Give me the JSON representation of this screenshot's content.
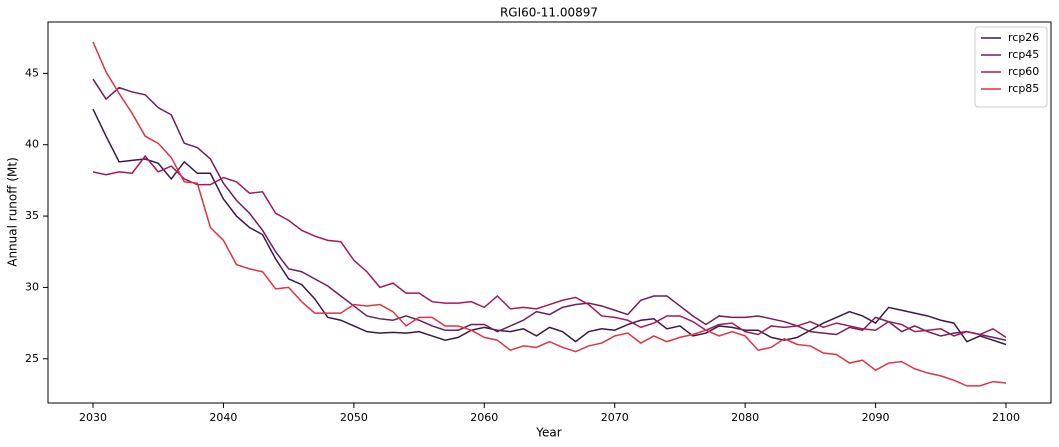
{
  "chart_data": {
    "type": "line",
    "title": "RGI60-11.00897",
    "xlabel": "Year",
    "ylabel": "Annual runoff (Mt)",
    "x": [
      2030,
      2031,
      2032,
      2033,
      2034,
      2035,
      2036,
      2037,
      2038,
      2039,
      2040,
      2041,
      2042,
      2043,
      2044,
      2045,
      2046,
      2047,
      2048,
      2049,
      2050,
      2051,
      2052,
      2053,
      2054,
      2055,
      2056,
      2057,
      2058,
      2059,
      2060,
      2061,
      2062,
      2063,
      2064,
      2065,
      2066,
      2067,
      2068,
      2069,
      2070,
      2071,
      2072,
      2073,
      2074,
      2075,
      2076,
      2077,
      2078,
      2079,
      2080,
      2081,
      2082,
      2083,
      2084,
      2085,
      2086,
      2087,
      2088,
      2089,
      2090,
      2091,
      2092,
      2093,
      2094,
      2095,
      2096,
      2097,
      2098,
      2099,
      2100
    ],
    "series": [
      {
        "name": "rcp26",
        "color": "#3d1a46",
        "values": [
          42.5,
          40.6,
          38.8,
          38.9,
          39.0,
          38.7,
          37.6,
          38.8,
          38.0,
          38.0,
          36.2,
          35.0,
          34.2,
          33.7,
          32.0,
          30.6,
          30.2,
          29.2,
          27.9,
          27.7,
          27.3,
          26.9,
          26.8,
          26.85,
          26.8,
          26.9,
          26.6,
          26.3,
          26.5,
          27.0,
          27.2,
          27.0,
          26.9,
          27.1,
          26.6,
          27.2,
          26.9,
          26.2,
          26.9,
          27.1,
          27.0,
          27.4,
          27.7,
          27.8,
          27.1,
          27.3,
          26.6,
          26.8,
          27.3,
          27.2,
          27.0,
          27.0,
          26.5,
          26.3,
          26.5,
          27.0,
          27.5,
          27.9,
          28.3,
          28.0,
          27.5,
          28.6,
          28.4,
          28.2,
          28.0,
          27.7,
          27.5,
          26.2,
          26.6,
          26.3,
          26.0
        ]
      },
      {
        "name": "rcp45",
        "color": "#6f1f5c",
        "values": [
          44.6,
          43.2,
          44.0,
          43.7,
          43.5,
          42.6,
          42.1,
          40.1,
          39.8,
          39.0,
          37.3,
          36.1,
          35.2,
          34.0,
          32.5,
          31.3,
          31.1,
          30.6,
          30.1,
          29.4,
          28.7,
          28.0,
          27.8,
          27.7,
          28.0,
          27.7,
          27.3,
          27.0,
          27.0,
          27.4,
          27.4,
          26.9,
          27.3,
          27.7,
          28.3,
          28.1,
          28.6,
          28.8,
          28.9,
          28.7,
          28.4,
          28.1,
          29.1,
          29.4,
          29.4,
          28.7,
          28.0,
          27.4,
          28.0,
          27.9,
          27.9,
          28.0,
          27.8,
          27.6,
          27.3,
          26.9,
          26.8,
          26.7,
          27.2,
          27.0,
          27.9,
          27.6,
          26.9,
          27.3,
          26.9,
          26.6,
          26.8,
          26.9,
          26.7,
          26.5,
          26.3
        ]
      },
      {
        "name": "rcp60",
        "color": "#a3195b",
        "values": [
          38.1,
          37.9,
          38.1,
          38.0,
          39.2,
          38.1,
          38.5,
          37.6,
          37.2,
          37.2,
          37.7,
          37.4,
          36.6,
          36.7,
          35.2,
          34.7,
          34.0,
          33.6,
          33.3,
          33.2,
          31.9,
          31.1,
          30.0,
          30.3,
          29.6,
          29.6,
          29.0,
          28.9,
          28.9,
          29.0,
          28.6,
          29.4,
          28.5,
          28.6,
          28.5,
          28.8,
          29.1,
          29.3,
          28.8,
          28.0,
          27.9,
          27.7,
          27.2,
          27.5,
          28.0,
          28.0,
          27.6,
          27.0,
          27.4,
          27.5,
          26.9,
          26.7,
          27.3,
          27.2,
          27.3,
          27.6,
          27.2,
          27.5,
          27.3,
          27.1,
          27.0,
          27.6,
          27.4,
          26.9,
          27.0,
          27.1,
          26.6,
          26.9,
          26.7,
          27.1,
          26.5
        ]
      },
      {
        "name": "rcp85",
        "color": "#e13342",
        "values": [
          47.2,
          45.1,
          43.6,
          42.2,
          40.6,
          40.1,
          39.1,
          37.4,
          37.3,
          34.2,
          33.3,
          31.6,
          31.3,
          31.1,
          29.9,
          30.0,
          29.0,
          28.2,
          28.2,
          28.2,
          28.8,
          28.7,
          28.8,
          28.3,
          27.3,
          27.9,
          27.9,
          27.3,
          27.3,
          27.0,
          26.5,
          26.3,
          25.6,
          25.9,
          25.8,
          26.2,
          25.8,
          25.5,
          25.9,
          26.1,
          26.6,
          26.8,
          26.1,
          26.6,
          26.2,
          26.5,
          26.7,
          27.0,
          26.6,
          26.9,
          26.6,
          25.6,
          25.8,
          26.4,
          26.0,
          25.9,
          25.4,
          25.3,
          24.7,
          24.9,
          24.2,
          24.7,
          24.8,
          24.3,
          24.0,
          23.8,
          23.5,
          23.1,
          23.1,
          23.4,
          23.3
        ]
      }
    ],
    "xlim": [
      2026.55,
      2103.45
    ],
    "ylim": [
      21.9,
      48.6
    ],
    "xticks": [
      2030,
      2040,
      2050,
      2060,
      2070,
      2080,
      2090,
      2100
    ],
    "yticks": [
      25,
      30,
      35,
      40,
      45
    ],
    "grid": false,
    "legend": "upper right"
  }
}
